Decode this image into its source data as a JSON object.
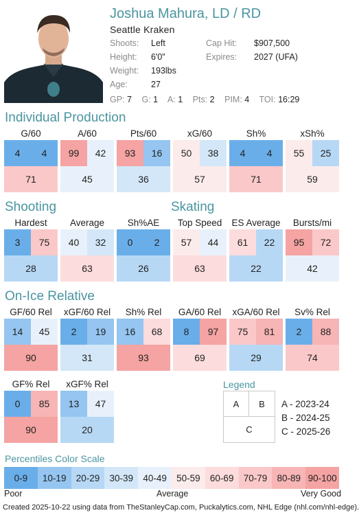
{
  "player": {
    "name": "Joshua Mahura, LD / RD",
    "team": "Seattle Kraken",
    "details": [
      {
        "label": "Shoots:",
        "value": "Left"
      },
      {
        "label": "Height:",
        "value": "6'0\""
      },
      {
        "label": "Weight:",
        "value": "193lbs"
      },
      {
        "label": "Age:",
        "value": "27"
      }
    ],
    "contract": [
      {
        "label": "Cap Hit:",
        "value": "$907,500"
      },
      {
        "label": "Expires:",
        "value": "2027 (UFA)"
      }
    ],
    "statline": [
      {
        "k": "GP:",
        "v": "7"
      },
      {
        "k": "G:",
        "v": "1"
      },
      {
        "k": "A:",
        "v": "1"
      },
      {
        "k": "Pts:",
        "v": "2"
      },
      {
        "k": "PIM:",
        "v": "4"
      },
      {
        "k": "TOI:",
        "v": "16:29"
      }
    ]
  },
  "sections": {
    "individual": "Individual Production",
    "shooting": "Shooting",
    "skating": "Skating",
    "onice": "On-Ice Relative"
  },
  "individual": [
    {
      "title": "G/60",
      "a": 4,
      "b": 4,
      "c": 71
    },
    {
      "title": "A/60",
      "a": 99,
      "b": 42,
      "c": 45
    },
    {
      "title": "Pts/60",
      "a": 93,
      "b": 16,
      "c": 36
    },
    {
      "title": "xG/60",
      "a": 50,
      "b": 38,
      "c": 57
    },
    {
      "title": "Sh%",
      "a": 4,
      "b": 4,
      "c": 71
    },
    {
      "title": "xSh%",
      "a": 55,
      "b": 25,
      "c": 59
    }
  ],
  "shooting_skating": [
    {
      "title": "Hardest",
      "a": 3,
      "b": 75,
      "c": 28
    },
    {
      "title": "Average",
      "a": 40,
      "b": 32,
      "c": 63
    },
    {
      "title": "Sh%AE",
      "a": 0,
      "b": 2,
      "c": 26
    },
    {
      "title": "Top Speed",
      "a": 57,
      "b": 44,
      "c": 63
    },
    {
      "title": "ES Average",
      "a": 61,
      "b": 22,
      "c": 22
    },
    {
      "title": "Bursts/mi",
      "a": 95,
      "b": 72,
      "c": 42
    }
  ],
  "onice": [
    {
      "title": "GF/60 Rel",
      "a": 14,
      "b": 45,
      "c": 90
    },
    {
      "title": "xGF/60 Rel",
      "a": 2,
      "b": 19,
      "c": 31
    },
    {
      "title": "Sh% Rel",
      "a": 16,
      "b": 68,
      "c": 93
    },
    {
      "title": "GA/60 Rel",
      "a": 8,
      "b": 97,
      "c": 69
    },
    {
      "title": "xGA/60 Rel",
      "a": 75,
      "b": 81,
      "c": 29
    },
    {
      "title": "Sv% Rel",
      "a": 2,
      "b": 88,
      "c": 74
    }
  ],
  "onice2": [
    {
      "title": "GF% Rel",
      "a": 0,
      "b": 85,
      "c": 90
    },
    {
      "title": "xGF% Rel",
      "a": 13,
      "b": 47,
      "c": 20
    }
  ],
  "legend": {
    "title": "Legend",
    "a": "A",
    "b": "B",
    "c": "C",
    "entries": [
      "A - 2023-24",
      "B - 2024-25",
      "C - 2025-26"
    ]
  },
  "scale": {
    "title": "Percentiles Color Scale",
    "bins": [
      "0-9",
      "10-19",
      "20-29",
      "30-39",
      "40-49",
      "50-59",
      "60-69",
      "70-79",
      "80-89",
      "90-100"
    ],
    "colors": [
      "#6aaee9",
      "#95c5f0",
      "#b7d8f5",
      "#d3e7f8",
      "#e8f1fb",
      "#fcebeb",
      "#fcdcdc",
      "#fac8c8",
      "#f7b5b5",
      "#f5a3a3"
    ],
    "poor": "Poor",
    "average": "Average",
    "very_good": "Very Good"
  },
  "footer": "Created 2025-10-22 using data from TheStanleyCap.com, Puckalytics.com, NHL Edge (nhl.com/nhl-edge)."
}
